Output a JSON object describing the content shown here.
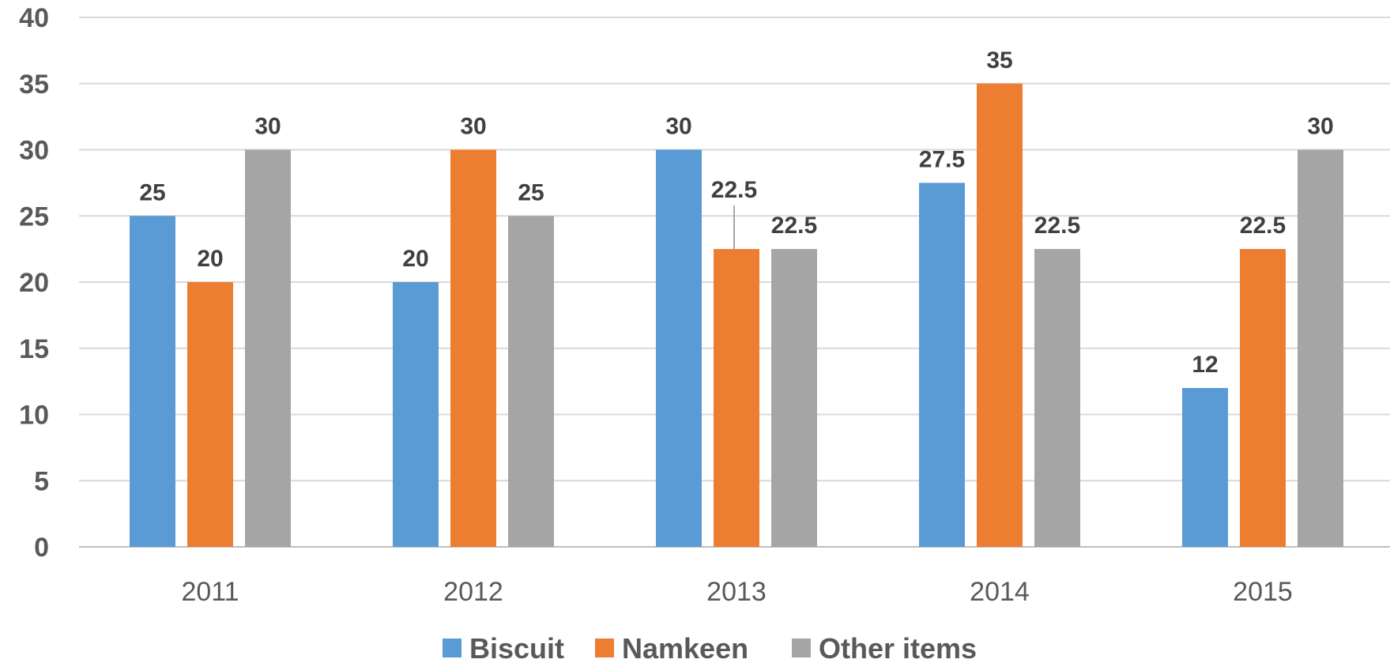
{
  "chart_data": {
    "type": "bar",
    "title": "",
    "xlabel": "",
    "ylabel": "",
    "categories": [
      "2011",
      "2012",
      "2013",
      "2014",
      "2015"
    ],
    "series": [
      {
        "name": "Biscuit",
        "color": "#5b9bd5",
        "values": [
          25,
          20,
          30,
          27.5,
          12
        ]
      },
      {
        "name": "Namkeen",
        "color": "#ed7d31",
        "values": [
          20,
          30,
          22.5,
          35,
          22.5
        ]
      },
      {
        "name": "Other items",
        "color": "#a5a5a5",
        "values": [
          30,
          25,
          22.5,
          22.5,
          30
        ]
      }
    ],
    "ylim": [
      0,
      40
    ],
    "yticks": [
      0,
      5,
      10,
      15,
      20,
      25,
      30,
      35,
      40
    ],
    "grid": true,
    "legend": "bottom-center",
    "data_labels": true
  }
}
